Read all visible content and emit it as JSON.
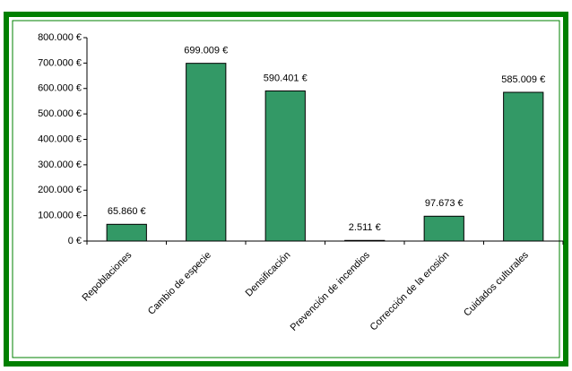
{
  "chart_data": {
    "type": "bar",
    "categories": [
      "Repoblaciones",
      "Cambio de especie",
      "Densificación",
      "Prevención de incendios",
      "Corrección de la erosión",
      "Cuidados culturales"
    ],
    "values": [
      65860,
      699009,
      590401,
      2511,
      97673,
      585009
    ],
    "value_labels": [
      "65.860 €",
      "699.009 €",
      "590.401 €",
      "2.511 €",
      "97.673 €",
      "585.009 €"
    ],
    "color": "#339966",
    "ylim": [
      0,
      800000
    ],
    "yticks": [
      {
        "value": 0,
        "label": "0 €"
      },
      {
        "value": 100000,
        "label": "100.000 €"
      },
      {
        "value": 200000,
        "label": "200.000 €"
      },
      {
        "value": 300000,
        "label": "300.000 €"
      },
      {
        "value": 400000,
        "label": "400.000 €"
      },
      {
        "value": 500000,
        "label": "500.000 €"
      },
      {
        "value": 600000,
        "label": "600.000 €"
      },
      {
        "value": 700000,
        "label": "700.000 €"
      },
      {
        "value": 800000,
        "label": "800.000 €"
      }
    ],
    "grid": false
  }
}
